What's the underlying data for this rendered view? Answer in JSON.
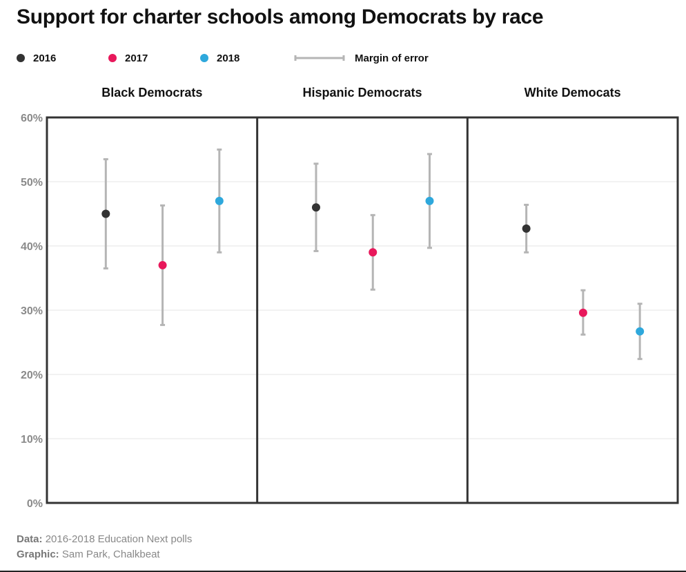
{
  "title": "Support for charter schools among Democrats by race",
  "legend": {
    "items": [
      {
        "label": "2016",
        "color": "#333333"
      },
      {
        "label": "2017",
        "color": "#e8185b"
      },
      {
        "label": "2018",
        "color": "#2ea8dc"
      }
    ],
    "moe_label": "Margin of error",
    "moe_color": "#b5b5b5"
  },
  "chart_data": {
    "type": "scatter",
    "title": "Support for charter schools among Democrats by race",
    "ylim": [
      0,
      60
    ],
    "yticks": [
      0,
      10,
      20,
      30,
      40,
      50,
      60
    ],
    "ytick_labels": [
      "0%",
      "10%",
      "20%",
      "30%",
      "40%",
      "50%",
      "60%"
    ],
    "grid": true,
    "legend_position": "top-left",
    "series_names": [
      "2016",
      "2017",
      "2018"
    ],
    "panels": [
      {
        "label": "Black Democrats",
        "points": [
          {
            "year": "2016",
            "value": 45,
            "low": 36.5,
            "high": 53.5
          },
          {
            "year": "2017",
            "value": 37,
            "low": 27.7,
            "high": 46.3
          },
          {
            "year": "2018",
            "value": 47,
            "low": 39,
            "high": 55
          }
        ]
      },
      {
        "label": "Hispanic Democrats",
        "points": [
          {
            "year": "2016",
            "value": 46,
            "low": 39.2,
            "high": 52.8
          },
          {
            "year": "2017",
            "value": 39,
            "low": 33.2,
            "high": 44.8
          },
          {
            "year": "2018",
            "value": 47,
            "low": 39.7,
            "high": 54.3
          }
        ]
      },
      {
        "label": "White Democats",
        "points": [
          {
            "year": "2016",
            "value": 42.7,
            "low": 39,
            "high": 46.4
          },
          {
            "year": "2017",
            "value": 29.6,
            "low": 26.2,
            "high": 33.1
          },
          {
            "year": "2018",
            "value": 26.7,
            "low": 22.4,
            "high": 31
          }
        ]
      }
    ]
  },
  "footer": {
    "data_label": "Data:",
    "data_text": "2016-2018 Education Next polls",
    "graphic_label": "Graphic:",
    "graphic_text": "Sam Park, Chalkbeat"
  }
}
